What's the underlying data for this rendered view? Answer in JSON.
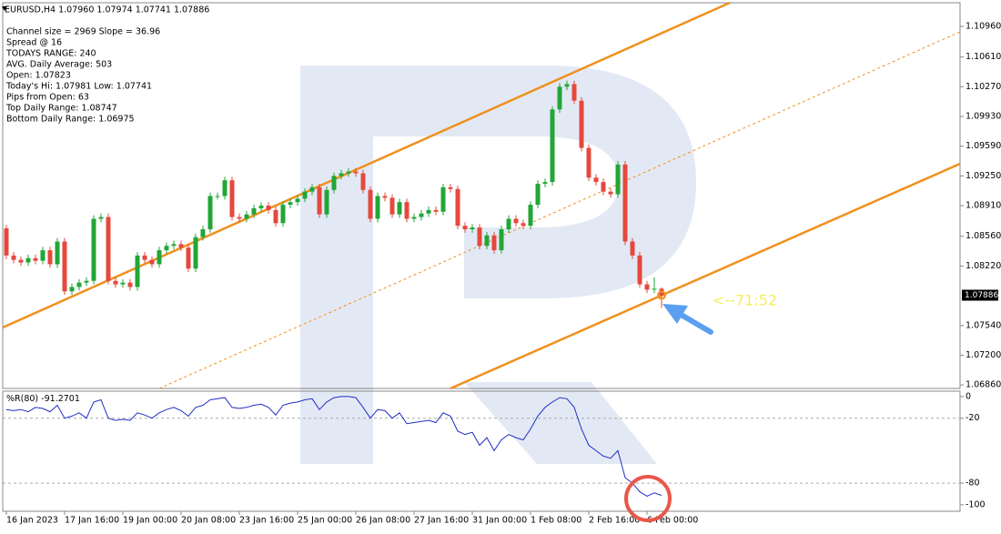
{
  "chart_data": {
    "type": "candlestick",
    "header": "EURUSD,H4 1.07960 1.07974 1.07741 1.07886",
    "info_lines": [
      "Channel size = 2969 Slope = 36.96",
      "Spread @ 16",
      "TODAYS RANGE: 240",
      "AVG. Daily Average: 503",
      "Open: 1.07823",
      "Today's Hi: 1.07981  Low: 1.07741",
      "Pips from Open: 63",
      "Top Daily Range: 1.08747",
      "Bottom Daily Range: 1.06975"
    ],
    "up_color": "#22a637",
    "down_color": "#e5483e",
    "open": [
      1.0865,
      1.0834,
      1.0829,
      1.0826,
      1.0831,
      1.0828,
      1.084,
      1.0824,
      1.085,
      1.0793,
      1.0798,
      1.0803,
      1.0805,
      1.0876,
      1.0878,
      1.0805,
      1.0801,
      1.0803,
      1.0798,
      1.0834,
      1.0829,
      1.0824,
      1.084,
      1.0845,
      1.0847,
      1.0843,
      1.0819,
      1.0855,
      1.0864,
      1.0902,
      1.0902,
      1.092,
      1.0878,
      1.0876,
      1.0881,
      1.0888,
      1.0891,
      1.0886,
      1.0871,
      1.0892,
      1.0895,
      1.0899,
      1.0907,
      1.0912,
      1.0881,
      1.0909,
      1.0925,
      1.0928,
      1.093,
      1.0928,
      1.0909,
      1.0876,
      1.0902,
      1.09,
      1.0881,
      1.0895,
      1.0876,
      1.0878,
      1.0882,
      1.0886,
      1.0884,
      1.0912,
      1.091,
      1.0868,
      1.0864,
      1.0866,
      1.0845,
      1.0857,
      1.084,
      1.0864,
      1.0876,
      1.0871,
      1.0868,
      1.0892,
      1.0916,
      1.0918,
      1.1001,
      1.1027,
      1.103,
      1.1011,
      1.0957,
      1.0923,
      1.0918,
      1.0907,
      1.0904,
      1.0938,
      1.085,
      1.0834,
      1.0801,
      1.0795,
      1.0796
    ],
    "high": [
      1.0869,
      1.0838,
      1.0833,
      1.0835,
      1.0835,
      1.0844,
      1.0844,
      1.0854,
      1.0854,
      1.0802,
      1.0807,
      1.0809,
      1.088,
      1.0882,
      1.0882,
      1.0809,
      1.0807,
      1.0807,
      1.0838,
      1.0838,
      1.0833,
      1.0844,
      1.0849,
      1.0851,
      1.0851,
      1.0847,
      1.0859,
      1.0868,
      1.0906,
      1.0906,
      1.0924,
      1.0924,
      1.0882,
      1.0885,
      1.0892,
      1.0895,
      1.0895,
      1.089,
      1.0896,
      1.0899,
      1.0903,
      1.0911,
      1.0916,
      1.0916,
      1.0913,
      1.0929,
      1.0932,
      1.0934,
      1.0934,
      1.0932,
      1.0913,
      1.0906,
      1.0906,
      1.0904,
      1.0899,
      1.0899,
      1.0882,
      1.0886,
      1.089,
      1.089,
      1.0916,
      1.0916,
      1.0914,
      1.0872,
      1.087,
      1.087,
      1.0861,
      1.0861,
      1.0868,
      1.088,
      1.088,
      1.0875,
      1.0896,
      1.092,
      1.0922,
      1.1005,
      1.1031,
      1.1034,
      1.1034,
      1.1015,
      1.0961,
      1.0927,
      1.0922,
      1.0911,
      1.0942,
      1.0942,
      1.0854,
      1.0838,
      1.0805,
      1.0809,
      1.07974
    ],
    "low": [
      1.083,
      1.0825,
      1.0822,
      1.0822,
      1.0824,
      1.0824,
      1.082,
      1.082,
      1.0789,
      1.0789,
      1.0794,
      1.0799,
      1.0801,
      1.0872,
      1.0801,
      1.0797,
      1.0797,
      1.0794,
      1.0794,
      1.0825,
      1.082,
      1.082,
      1.0836,
      1.0841,
      1.0839,
      1.0815,
      1.0815,
      1.0851,
      1.086,
      1.0898,
      1.0898,
      1.0874,
      1.0872,
      1.0872,
      1.0877,
      1.0884,
      1.0882,
      1.0867,
      1.0867,
      1.0888,
      1.0891,
      1.0895,
      1.0903,
      1.0877,
      1.0877,
      1.0905,
      1.0921,
      1.0924,
      1.0924,
      1.0905,
      1.0872,
      1.0872,
      1.0896,
      1.0877,
      1.0877,
      1.0872,
      1.0872,
      1.0874,
      1.0878,
      1.088,
      1.088,
      1.0906,
      1.0864,
      1.086,
      1.086,
      1.0841,
      1.0841,
      1.0836,
      1.0836,
      1.086,
      1.0867,
      1.0864,
      1.0864,
      1.0888,
      1.0912,
      1.0914,
      1.0997,
      1.1023,
      1.1007,
      1.0953,
      1.0919,
      1.0914,
      1.0903,
      1.09,
      1.09,
      1.0846,
      1.083,
      1.0797,
      1.0791,
      1.0791,
      1.07741
    ],
    "close": [
      1.0834,
      1.0829,
      1.0826,
      1.0831,
      1.0828,
      1.084,
      1.0824,
      1.085,
      1.0793,
      1.0798,
      1.0803,
      1.0805,
      1.0876,
      1.0878,
      1.0805,
      1.0801,
      1.0803,
      1.0798,
      1.0834,
      1.0829,
      1.0824,
      1.084,
      1.0845,
      1.0847,
      1.0843,
      1.0819,
      1.0855,
      1.0864,
      1.0902,
      1.0902,
      1.092,
      1.0878,
      1.0876,
      1.0881,
      1.0888,
      1.0891,
      1.0886,
      1.0871,
      1.0892,
      1.0895,
      1.0899,
      1.0907,
      1.0912,
      1.0881,
      1.0909,
      1.0925,
      1.0928,
      1.093,
      1.0928,
      1.0909,
      1.0876,
      1.0902,
      1.09,
      1.0881,
      1.0895,
      1.0876,
      1.0878,
      1.0882,
      1.0886,
      1.0884,
      1.0912,
      1.091,
      1.0868,
      1.0864,
      1.0866,
      1.0845,
      1.0857,
      1.084,
      1.0864,
      1.0876,
      1.0871,
      1.0868,
      1.0892,
      1.0916,
      1.0918,
      1.1001,
      1.1027,
      1.103,
      1.1011,
      1.0957,
      1.0923,
      1.0918,
      1.0907,
      1.0904,
      1.0938,
      1.085,
      1.0834,
      1.0801,
      1.0795,
      1.0796,
      1.07886
    ],
    "xlim": [
      -0.5,
      131
    ],
    "xticks": [
      {
        "value": 0,
        "label": "16 Jan 2023"
      },
      {
        "value": 8,
        "label": "17 Jan 16:00"
      },
      {
        "value": 16,
        "label": "19 Jan 00:00"
      },
      {
        "value": 24,
        "label": "20 Jan 08:00"
      },
      {
        "value": 32,
        "label": "23 Jan 16:00"
      },
      {
        "value": 40,
        "label": "25 Jan 00:00"
      },
      {
        "value": 48,
        "label": "26 Jan 08:00"
      },
      {
        "value": 56,
        "label": "27 Jan 16:00"
      },
      {
        "value": 64,
        "label": "31 Jan 00:00"
      },
      {
        "value": 72,
        "label": "1 Feb 08:00"
      },
      {
        "value": 80,
        "label": "2 Feb 16:00"
      },
      {
        "value": 88,
        "label": "6 Feb 00:00"
      }
    ],
    "ylim": [
      1.0682,
      1.1123
    ],
    "yticks": [
      {
        "value": 1.1096,
        "label": "1.10960"
      },
      {
        "value": 1.1061,
        "label": "1.10610"
      },
      {
        "value": 1.1027,
        "label": "1.10270"
      },
      {
        "value": 1.0993,
        "label": "1.09930"
      },
      {
        "value": 1.0959,
        "label": "1.09590"
      },
      {
        "value": 1.0925,
        "label": "1.09250"
      },
      {
        "value": 1.0891,
        "label": "1.08910"
      },
      {
        "value": 1.0856,
        "label": "1.08560"
      },
      {
        "value": 1.0822,
        "label": "1.08220"
      },
      {
        "value": 1.0754,
        "label": "1.07540"
      },
      {
        "value": 1.072,
        "label": "1.07200"
      },
      {
        "value": 1.0686,
        "label": "1.06860"
      }
    ],
    "current_price": 1.07886,
    "countdown": "<--71:52",
    "indicator": {
      "name": "%R(80)",
      "color": "#1f2fc4",
      "ylim": [
        -106,
        5
      ],
      "yticks": [
        0,
        -20,
        -80,
        -100
      ],
      "values": [
        -12,
        -13,
        -12,
        -14,
        -10,
        -11,
        -14,
        -8,
        -20,
        -18,
        -15,
        -20,
        -5,
        -3,
        -20,
        -22,
        -21,
        -22,
        -15,
        -17,
        -20,
        -15,
        -12,
        -10,
        -13,
        -18,
        -10,
        -8,
        -3,
        -2,
        -1,
        -10,
        -11,
        -10,
        -8,
        -7,
        -10,
        -17,
        -8,
        -6,
        -5,
        -3,
        -2,
        -12,
        -5,
        -1,
        0,
        0,
        -1,
        -10,
        -20,
        -12,
        -13,
        -20,
        -15,
        -25,
        -24,
        -23,
        -22,
        -24,
        -15,
        -18,
        -32,
        -35,
        -33,
        -45,
        -38,
        -50,
        -40,
        -35,
        -38,
        -40,
        -30,
        -18,
        -10,
        -5,
        -1,
        -2,
        -10,
        -30,
        -45,
        -50,
        -55,
        -57,
        -50,
        -75,
        -80,
        -88,
        -92,
        -89,
        -91.2701
      ]
    }
  }
}
